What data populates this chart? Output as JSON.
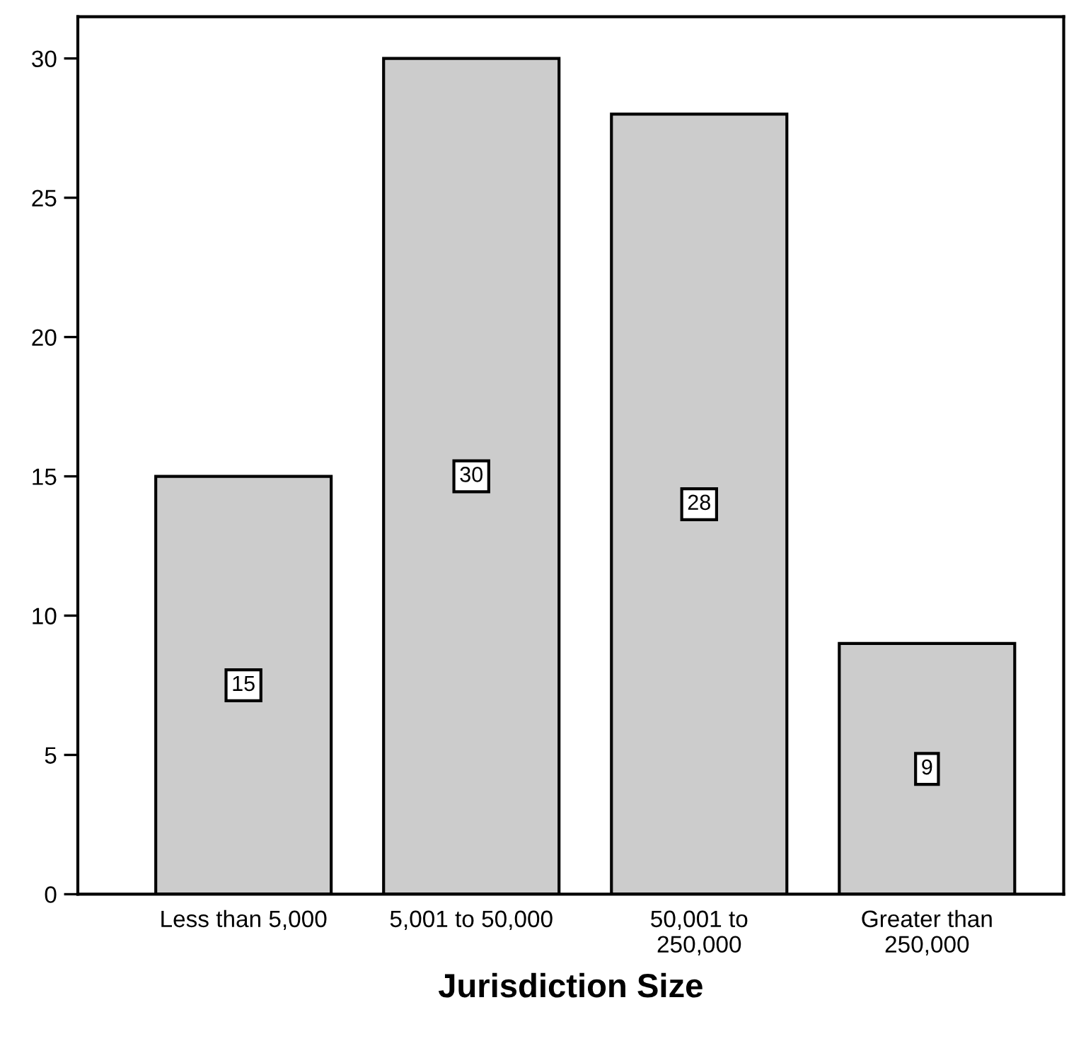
{
  "chart_data": {
    "type": "bar",
    "xlabel": "Jurisdiction Size",
    "categories": [
      "Less than 5,000",
      "5,001 to 50,000",
      "50,001 to\n250,000",
      "Greater than\n250,000"
    ],
    "values": [
      15,
      30,
      28,
      9
    ],
    "color": "#cccccc",
    "ylim": [
      0,
      31.5
    ],
    "yticks": [
      0,
      5,
      10,
      15,
      20,
      25,
      30
    ],
    "data_labels": true,
    "grid": false
  }
}
